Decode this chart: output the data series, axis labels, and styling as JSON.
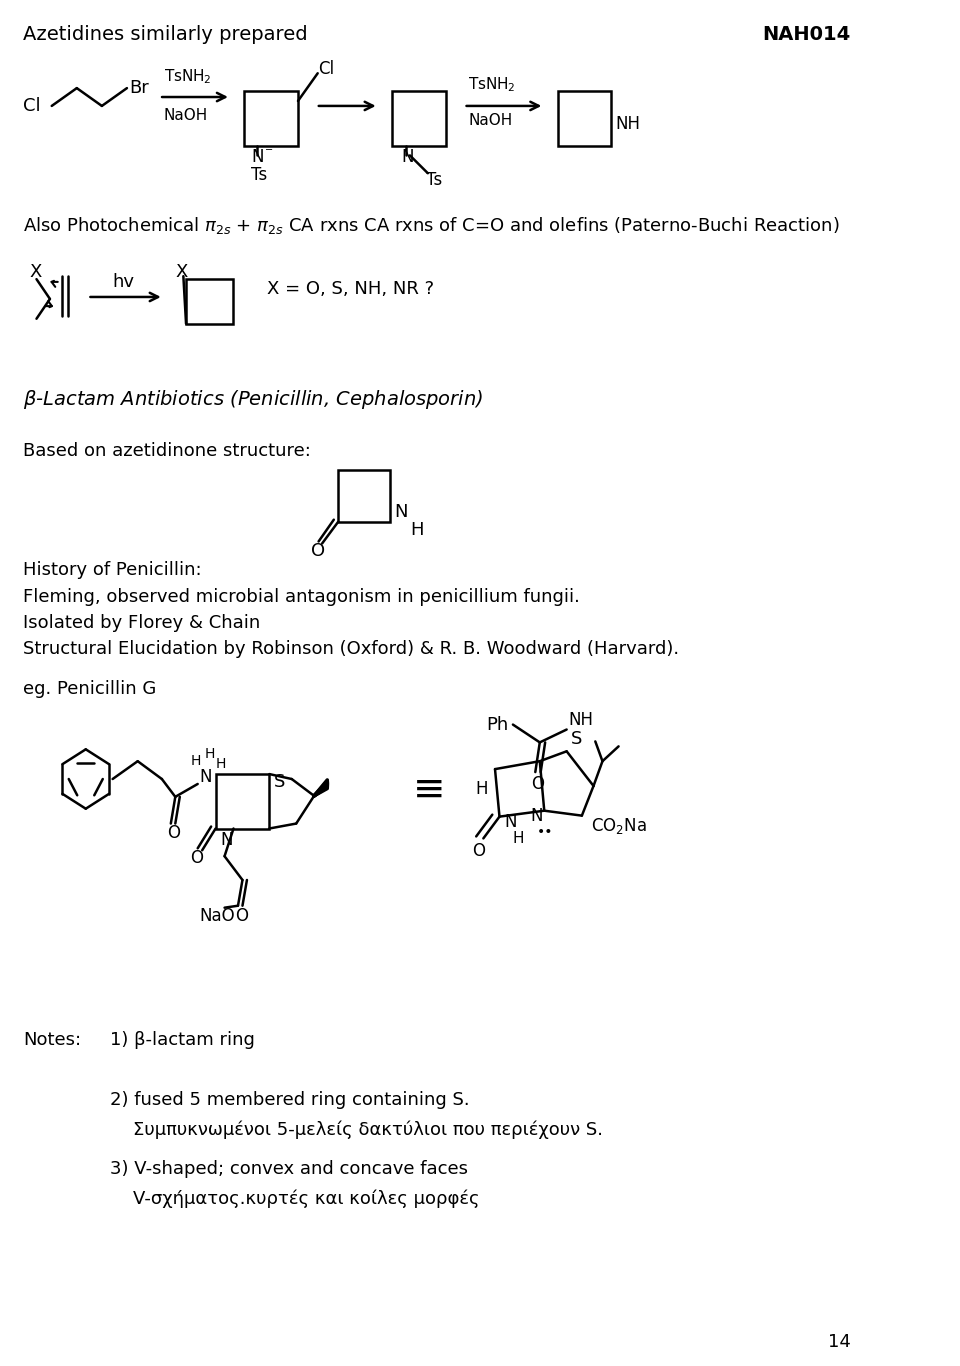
{
  "figsize": [
    9.6,
    13.66
  ],
  "dpi": 100,
  "bg_color": "#ffffff",
  "title": "Azetidines similarly prepared",
  "title_id": "NAH014",
  "page_num": "14"
}
